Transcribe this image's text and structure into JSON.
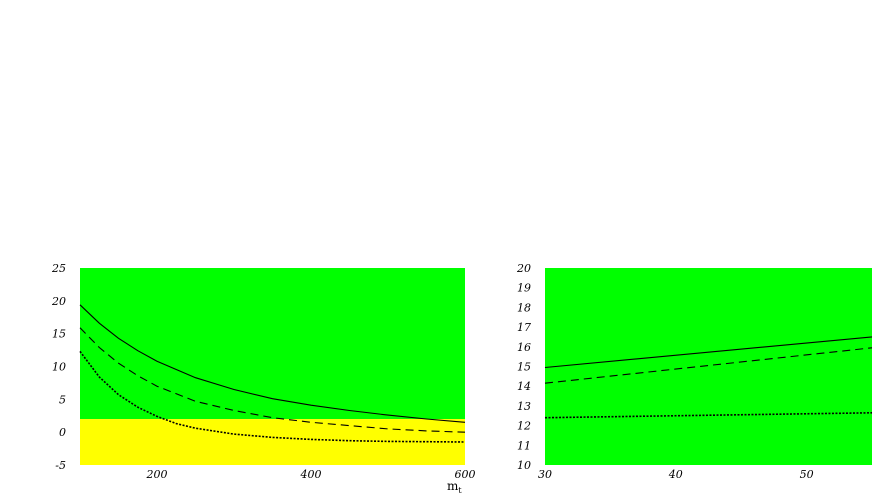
{
  "chart_data": [
    {
      "type": "line",
      "background_regions": [
        {
          "y_from": 2,
          "y_to": 25,
          "color": "#00ff00"
        },
        {
          "y_from": -5,
          "y_to": 2,
          "color": "#ffff00"
        }
      ],
      "xlabel_main": "m",
      "xlabel_sub": "t",
      "xlim": [
        100,
        600
      ],
      "ylim": [
        -5,
        25
      ],
      "xticks": [
        200,
        400,
        600
      ],
      "xtick_labels": [
        "200",
        "400",
        "600"
      ],
      "yticks": [
        25,
        20,
        15,
        10,
        5,
        0,
        -5
      ],
      "ytick_labels": [
        "25",
        "20",
        "15",
        "10",
        "5",
        "0",
        "-5"
      ],
      "grid": false,
      "series": [
        {
          "style": "solid",
          "x": [
            100,
            125,
            150,
            175,
            200,
            250,
            300,
            350,
            400,
            450,
            500,
            550,
            600
          ],
          "y": [
            19.4,
            16.6,
            14.3,
            12.4,
            10.8,
            8.3,
            6.5,
            5.1,
            4.1,
            3.3,
            2.6,
            2.0,
            1.5
          ]
        },
        {
          "style": "dashed",
          "x": [
            100,
            125,
            150,
            175,
            200,
            250,
            300,
            350,
            400,
            450,
            500,
            550,
            600
          ],
          "y": [
            15.9,
            12.9,
            10.5,
            8.6,
            7.0,
            4.7,
            3.3,
            2.2,
            1.5,
            1.0,
            0.5,
            0.2,
            0.0
          ]
        },
        {
          "style": "dotted",
          "x": [
            100,
            125,
            150,
            175,
            200,
            225,
            250,
            300,
            350,
            400,
            450,
            500,
            550,
            600
          ],
          "y": [
            12.3,
            8.4,
            5.7,
            3.8,
            2.4,
            1.3,
            0.6,
            -0.3,
            -0.8,
            -1.1,
            -1.3,
            -1.4,
            -1.45,
            -1.5
          ]
        }
      ]
    },
    {
      "type": "line",
      "background_regions": [
        {
          "y_from": 10,
          "y_to": 20,
          "color": "#00ff00"
        }
      ],
      "xlim": [
        30,
        55
      ],
      "ylim": [
        10,
        20
      ],
      "xticks": [
        30,
        40,
        50
      ],
      "xtick_labels": [
        "30",
        "40",
        "50"
      ],
      "yticks": [
        20,
        19,
        18,
        17,
        16,
        15,
        14,
        13,
        12,
        11,
        10
      ],
      "ytick_labels": [
        "20",
        "19",
        "18",
        "17",
        "16",
        "15",
        "14",
        "13",
        "12",
        "11",
        "10"
      ],
      "grid": false,
      "series": [
        {
          "style": "solid",
          "x": [
            30,
            55
          ],
          "y": [
            14.95,
            16.5
          ]
        },
        {
          "style": "dashed",
          "x": [
            30,
            55
          ],
          "y": [
            14.15,
            15.95
          ]
        },
        {
          "style": "dotted",
          "x": [
            30,
            55
          ],
          "y": [
            12.4,
            12.65
          ]
        }
      ]
    }
  ]
}
